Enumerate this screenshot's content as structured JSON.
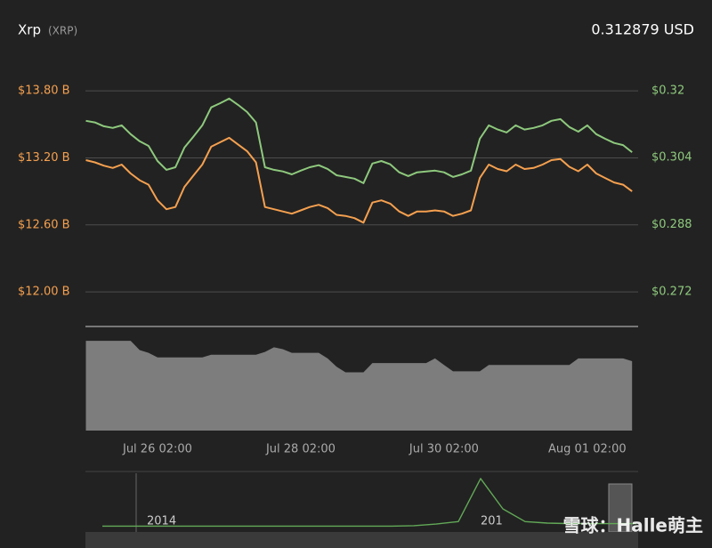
{
  "header": {
    "name": "Xrp",
    "symbol": "(XRP)",
    "price": "0.312879 USD"
  },
  "watermark": "雪球：Halle萌主",
  "chart_data": [
    {
      "type": "line",
      "categories": [
        null,
        null,
        null,
        null,
        null,
        null,
        null,
        null,
        "Jul 26 02:00",
        null,
        null,
        null,
        null,
        null,
        null,
        null,
        null,
        null,
        null,
        null,
        null,
        null,
        null,
        null,
        "Jul 28 02:00",
        null,
        null,
        null,
        null,
        null,
        null,
        null,
        null,
        null,
        null,
        null,
        null,
        null,
        null,
        null,
        "Jul 30 02:00",
        null,
        null,
        null,
        null,
        null,
        null,
        null,
        null,
        null,
        null,
        null,
        null,
        null,
        null,
        null,
        "Aug 01 02:00",
        null,
        null,
        null,
        null,
        null
      ],
      "ylim": [
        11.69,
        14.08
      ],
      "yticks": [
        {
          "value": 12.0,
          "label": "$12.00 B"
        },
        {
          "value": 12.6,
          "label": "$12.60 B"
        },
        {
          "value": 13.2,
          "label": "$13.20 B"
        },
        {
          "value": 13.8,
          "label": "$13.80 B"
        }
      ],
      "y2lim": [
        0.2637,
        0.3274
      ],
      "y2ticks": [
        {
          "value": 0.272,
          "label": "$0.272"
        },
        {
          "value": 0.288,
          "label": "$0.288"
        },
        {
          "value": 0.304,
          "label": "$0.304"
        },
        {
          "value": 0.32,
          "label": "$0.32"
        }
      ],
      "grid": true,
      "series": [
        {
          "color": "#f5a04f",
          "values": [
            13.18,
            13.16,
            13.13,
            13.11,
            13.14,
            13.06,
            13.0,
            12.96,
            12.82,
            12.74,
            12.76,
            12.94,
            13.04,
            13.14,
            13.3,
            13.34,
            13.38,
            13.32,
            13.26,
            13.16,
            12.76,
            12.74,
            12.72,
            12.7,
            12.73,
            12.76,
            12.78,
            12.75,
            12.69,
            12.68,
            12.66,
            12.62,
            12.8,
            12.82,
            12.79,
            12.72,
            12.68,
            12.72,
            12.72,
            12.73,
            12.72,
            12.68,
            12.7,
            12.73,
            13.02,
            13.14,
            13.1,
            13.08,
            13.14,
            13.1,
            13.11,
            13.14,
            13.18,
            13.19,
            13.12,
            13.08,
            13.14,
            13.06,
            13.02,
            12.98,
            12.96,
            12.9
          ]
        },
        {
          "color": "#8ec97d",
          "axis": "y2",
          "values": [
            0.3128,
            0.3124,
            0.3115,
            0.3111,
            0.3117,
            0.3096,
            0.3079,
            0.3068,
            0.3032,
            0.3011,
            0.3017,
            0.3064,
            0.309,
            0.3117,
            0.316,
            0.317,
            0.3181,
            0.3166,
            0.3149,
            0.3124,
            0.3017,
            0.3011,
            0.3007,
            0.3,
            0.3009,
            0.3017,
            0.3022,
            0.3013,
            0.2998,
            0.2994,
            0.299,
            0.2979,
            0.3026,
            0.3032,
            0.3024,
            0.3005,
            0.2996,
            0.3005,
            0.3007,
            0.3009,
            0.3005,
            0.2994,
            0.3,
            0.3009,
            0.3085,
            0.3117,
            0.3107,
            0.31,
            0.3117,
            0.3107,
            0.3111,
            0.3117,
            0.3128,
            0.3132,
            0.3113,
            0.3102,
            0.3117,
            0.3096,
            0.3085,
            0.3075,
            0.307,
            0.3053
          ]
        }
      ]
    },
    {
      "type": "area",
      "color": "#7d7d7d",
      "ylim": [
        0,
        100
      ],
      "values": [
        97,
        97,
        97,
        97,
        97,
        97,
        87,
        84,
        79,
        79,
        79,
        79,
        79,
        79,
        82,
        82,
        82,
        82,
        82,
        82,
        85,
        90,
        88,
        84,
        84,
        84,
        84,
        78,
        69,
        63,
        63,
        63,
        73,
        73,
        73,
        73,
        73,
        73,
        73,
        78,
        71,
        64,
        64,
        64,
        64,
        71,
        71,
        71,
        71,
        71,
        71,
        71,
        71,
        71,
        71,
        78,
        78,
        78,
        78,
        78,
        78,
        75
      ]
    },
    {
      "type": "line",
      "color": "#62a957",
      "ylim": [
        0,
        100
      ],
      "categories": [
        null,
        null,
        "2014",
        null,
        null,
        null,
        null,
        null,
        null,
        null,
        null,
        null,
        null,
        null,
        null,
        null,
        null,
        "201",
        null,
        null,
        null,
        null,
        null,
        null,
        null
      ],
      "values": [
        1,
        1,
        1,
        1,
        1,
        1,
        1,
        1,
        1,
        1,
        1,
        1,
        1,
        1,
        2,
        5,
        10,
        95,
        35,
        10,
        7,
        6,
        6,
        6,
        6
      ]
    }
  ]
}
